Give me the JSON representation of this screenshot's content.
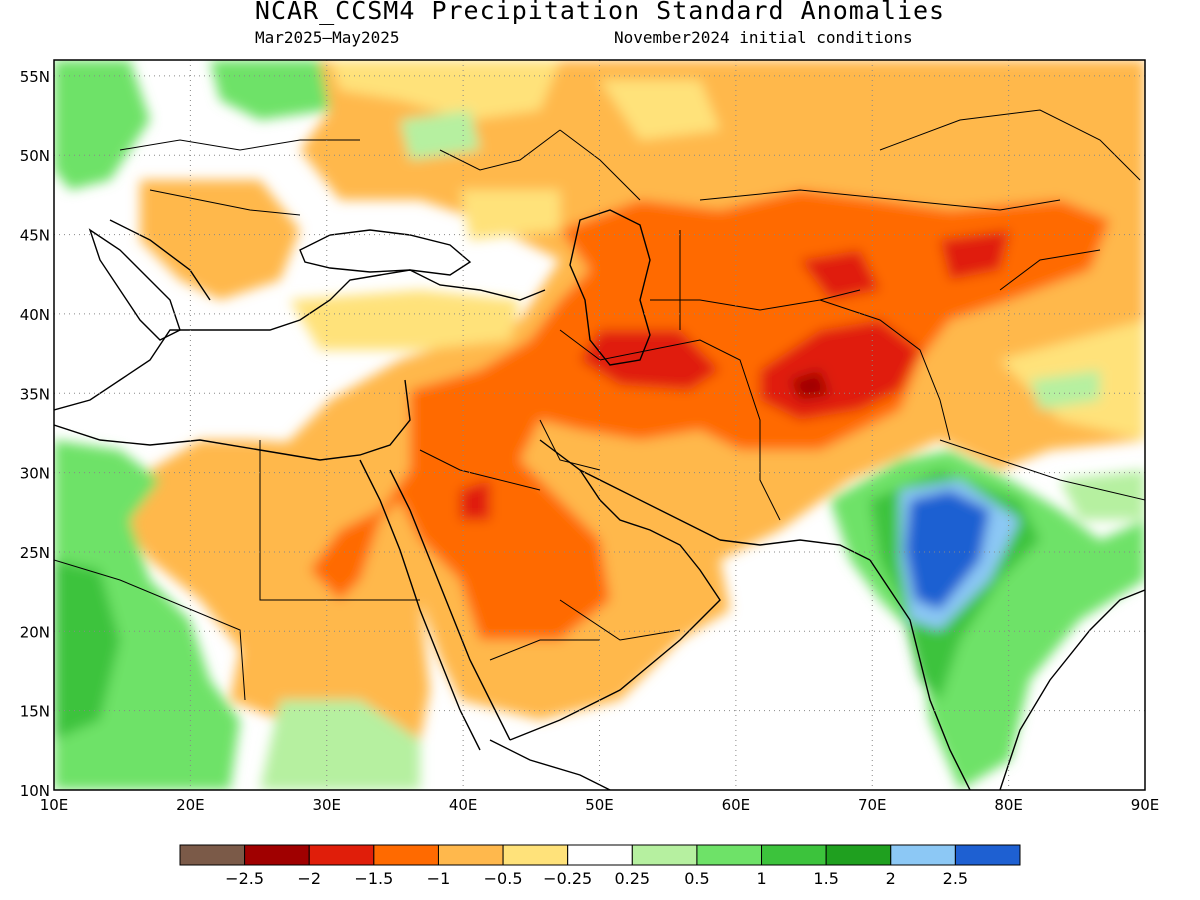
{
  "title": "NCAR_CCSM4 Precipitation Standard Anomalies",
  "subtitle_left": "Mar2025—May2025",
  "subtitle_right": "November2024 initial conditions",
  "map": {
    "lon_range": [
      10,
      90
    ],
    "lat_range": [
      10,
      56
    ],
    "lon_labels": [
      "10E",
      "20E",
      "30E",
      "40E",
      "50E",
      "60E",
      "70E",
      "80E",
      "90E"
    ],
    "lat_labels": [
      "10N",
      "15N",
      "20N",
      "25N",
      "30N",
      "35N",
      "40N",
      "45N",
      "50N",
      "55N"
    ],
    "grid": "dotted"
  },
  "legend": {
    "colors": [
      "#7b5a48",
      "#a00000",
      "#e01e0a",
      "#ff6a00",
      "#ffb84c",
      "#ffe27a",
      "#ffffff",
      "#b6f0a0",
      "#6ee268",
      "#3cc33c",
      "#1fa01f",
      "#8cc8f5",
      "#1e60d2"
    ],
    "labels": [
      "−2.5",
      "−2",
      "−1.5",
      "−1",
      "−0.5",
      "−0.25",
      "0.25",
      "0.5",
      "1",
      "1.5",
      "2",
      "2.5"
    ]
  }
}
